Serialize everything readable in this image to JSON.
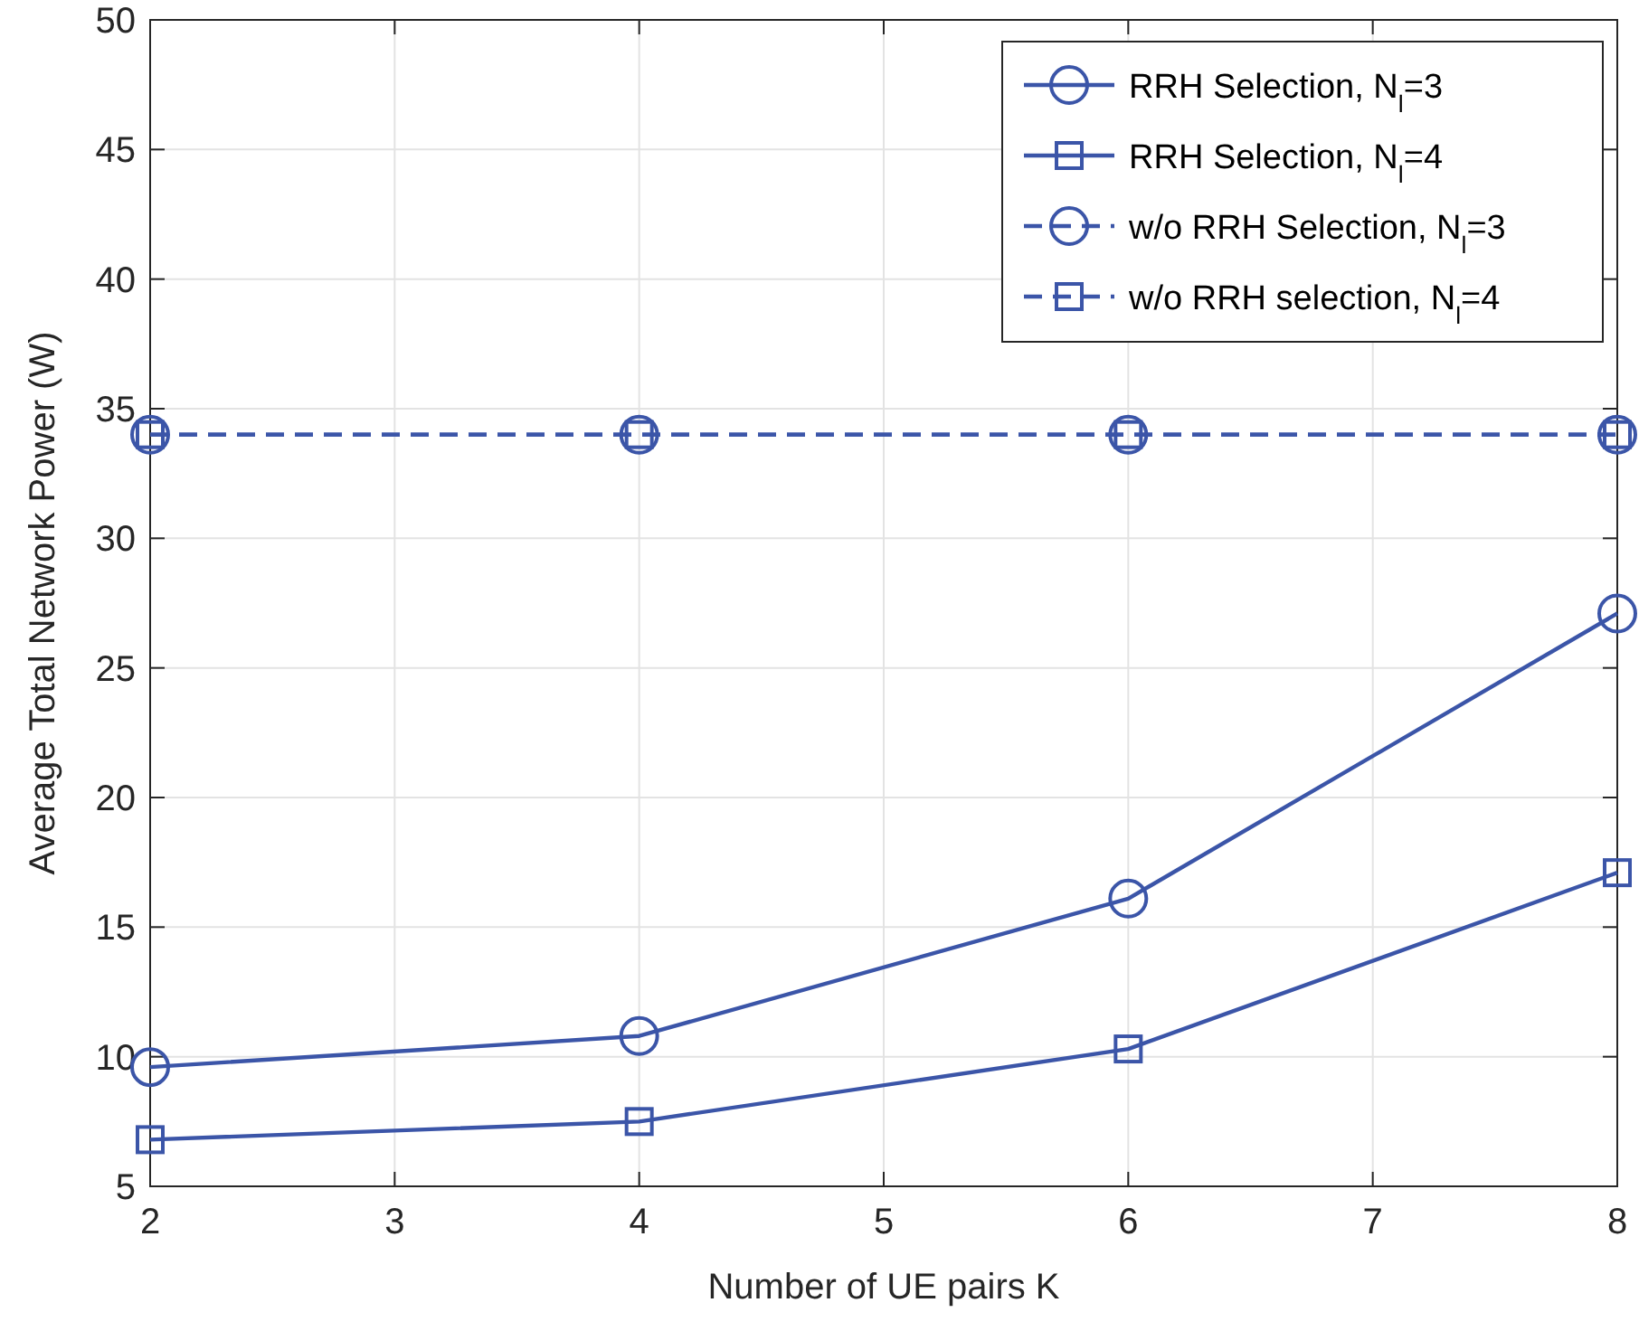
{
  "chart_data": {
    "type": "line",
    "xlabel": "Number of UE pairs K",
    "ylabel": "Average Total Network Power (W)",
    "x": [
      2,
      4,
      6,
      8
    ],
    "series": [
      {
        "name": "RRH Selection, N$_{l}$=3",
        "color": "#3b55a8",
        "values": [
          9.6,
          10.8,
          16.1,
          27.1
        ],
        "marker": "circle",
        "line_style": "solid"
      },
      {
        "name": "RRH Selection, N$_{l}$=4",
        "color": "#3b55a8",
        "values": [
          6.8,
          7.5,
          10.3,
          17.1
        ],
        "marker": "square",
        "line_style": "solid"
      },
      {
        "name": "w/o RRH Selection, N$_{l}$=3",
        "color": "#3b55a8",
        "values": [
          34,
          34,
          34,
          34
        ],
        "marker": "circle",
        "line_style": "dashed"
      },
      {
        "name": "w/o RRH selection, N$_{l}$=4",
        "color": "#3b55a8",
        "values": [
          34,
          34,
          34,
          34
        ],
        "marker": "square",
        "line_style": "dashed"
      }
    ],
    "xlim": [
      2,
      8
    ],
    "xticks": [
      2,
      3,
      4,
      5,
      6,
      7,
      8
    ],
    "ylim": [
      5,
      50
    ],
    "yticks": [
      5,
      10,
      15,
      20,
      25,
      30,
      35,
      40,
      45,
      50
    ],
    "grid": true,
    "legend": "top right"
  }
}
